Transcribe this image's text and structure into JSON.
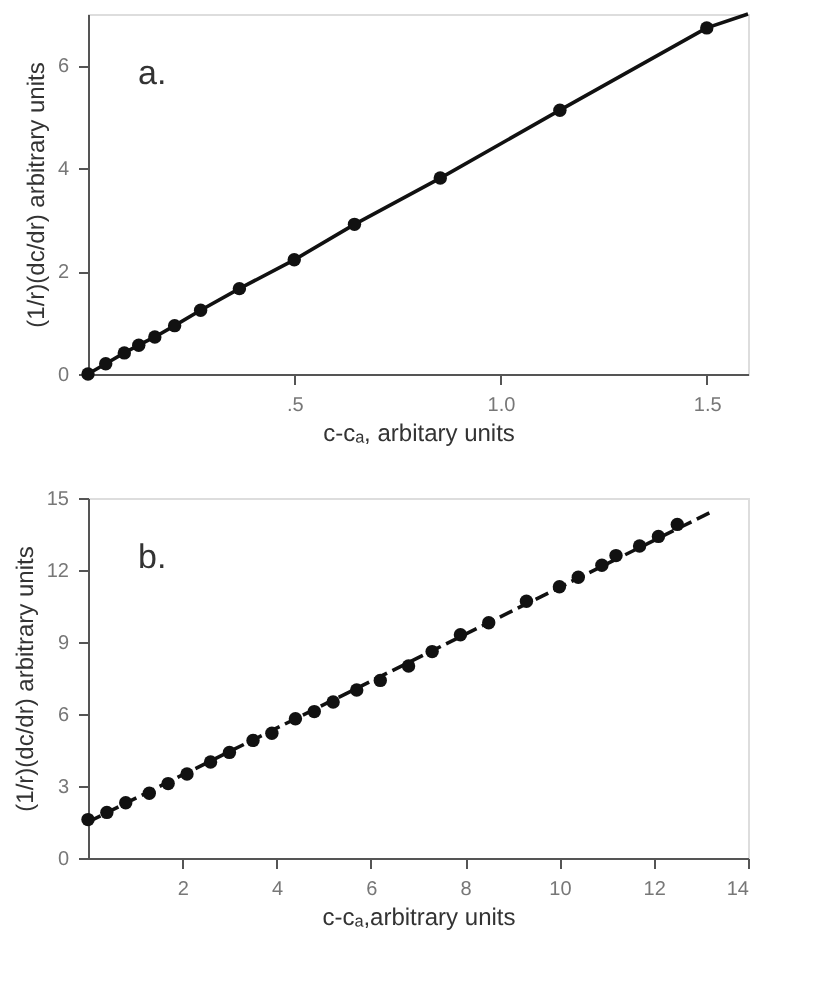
{
  "chart_data": [
    {
      "type": "scatter",
      "xlabel": "c-cₐ, arbitary units",
      "ylabel": "(1/r)(dc/dr) arbitrary units",
      "annotations": [
        "a."
      ],
      "xlim": [
        0,
        1.6
      ],
      "ylim": [
        0,
        7
      ],
      "xticks": [
        {
          "value": 0.5,
          "label": ".5"
        },
        {
          "value": 1,
          "label": "1.0"
        },
        {
          "value": 1.5,
          "label": "1.5"
        }
      ],
      "yticks": [
        0,
        2,
        4,
        6
      ],
      "grid": false,
      "marker": "circle",
      "series": [
        {
          "type": "line",
          "color": "#111111",
          "line_style": "solid",
          "marker": "none",
          "x": [
            0,
            0.043,
            0.088,
            0.123,
            0.162,
            0.21,
            0.273,
            0.367,
            0.5,
            0.646,
            0.854,
            1.144,
            1.5,
            1.6
          ],
          "values": [
            0,
            0.2,
            0.41,
            0.56,
            0.72,
            0.94,
            1.24,
            1.66,
            2.22,
            2.91,
            3.81,
            5.13,
            6.73,
            7.0
          ]
        },
        {
          "type": "scatter",
          "color": "#111111",
          "x": [
            0,
            0.043,
            0.088,
            0.123,
            0.162,
            0.21,
            0.273,
            0.367,
            0.5,
            0.646,
            0.854,
            1.144,
            1.5
          ],
          "values": [
            0,
            0.2,
            0.41,
            0.56,
            0.72,
            0.94,
            1.24,
            1.66,
            2.22,
            2.91,
            3.81,
            5.13,
            6.73
          ]
        }
      ]
    },
    {
      "type": "scatter",
      "xlabel": "c-cₐ,arbitrary units",
      "ylabel": "(1/r)(dc/dr) arbitrary units",
      "annotations": [
        "b."
      ],
      "xlim": [
        0,
        14
      ],
      "ylim": [
        0,
        15
      ],
      "xticks": [
        2,
        4,
        6,
        8,
        10,
        12,
        14
      ],
      "yticks": [
        0,
        3,
        6,
        9,
        12,
        15
      ],
      "grid": false,
      "marker": "circle",
      "series": [
        {
          "type": "line",
          "color": "#111111",
          "line_style": "dashed",
          "marker": "none",
          "x": [
            0,
            13.2
          ],
          "values": [
            1.5,
            14.4
          ]
        },
        {
          "type": "scatter",
          "color": "#111111",
          "x": [
            0.0,
            0.4,
            0.8,
            1.3,
            1.7,
            2.1,
            2.6,
            3.0,
            3.5,
            3.9,
            4.4,
            4.8,
            5.2,
            5.7,
            6.2,
            6.8,
            7.3,
            7.9,
            8.5,
            9.3,
            10.0,
            10.4,
            10.9,
            11.2,
            11.7,
            12.1,
            12.5
          ],
          "values": [
            1.6,
            1.9,
            2.3,
            2.7,
            3.1,
            3.5,
            4.0,
            4.4,
            4.9,
            5.2,
            5.8,
            6.1,
            6.5,
            7.0,
            7.4,
            8.0,
            8.6,
            9.3,
            9.8,
            10.7,
            11.3,
            11.7,
            12.2,
            12.6,
            13.0,
            13.4,
            13.9
          ]
        }
      ]
    }
  ]
}
